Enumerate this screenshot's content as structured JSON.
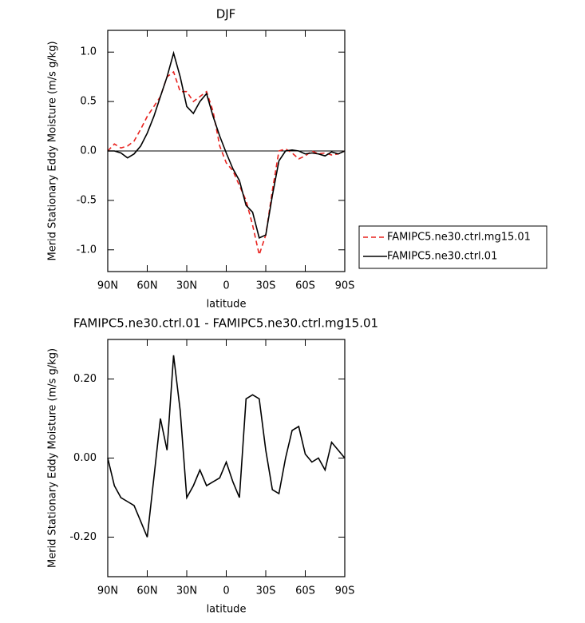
{
  "chart_data": [
    {
      "type": "line",
      "title": "DJF",
      "xlabel": "latitude",
      "ylabel": "Merid Stationary Eddy Moisture (m/s g/kg)",
      "x": [
        90,
        85,
        80,
        75,
        70,
        65,
        60,
        55,
        50,
        45,
        40,
        35,
        30,
        25,
        20,
        15,
        10,
        5,
        0,
        -5,
        -10,
        -15,
        -20,
        -25,
        -30,
        -35,
        -40,
        -45,
        -50,
        -55,
        -60,
        -65,
        -70,
        -75,
        -80,
        -85,
        -90
      ],
      "xlim": [
        90,
        -90
      ],
      "xticks": [
        {
          "value": 90,
          "label": "90N"
        },
        {
          "value": 60,
          "label": "60N"
        },
        {
          "value": 30,
          "label": "30N"
        },
        0,
        {
          "value": -30,
          "label": "30S"
        },
        {
          "value": -60,
          "label": "60S"
        },
        {
          "value": -90,
          "label": "90S"
        }
      ],
      "ylim": [
        -1.22,
        1.22
      ],
      "yticks": [
        {
          "value": 1,
          "label": "1.0"
        },
        {
          "value": 0.5,
          "label": "0.5"
        },
        {
          "value": 0,
          "label": "0.0"
        },
        {
          "value": -0.5,
          "label": "-0.5"
        },
        {
          "value": -1,
          "label": "-1.0"
        }
      ],
      "zero_line": true,
      "series": [
        {
          "name": "FAMIPC5.ne30.ctrl.mg15.01",
          "color": "#e8231f",
          "dashed": true,
          "values": [
            0.0,
            0.07,
            0.03,
            0.05,
            0.1,
            0.22,
            0.35,
            0.45,
            0.55,
            0.75,
            0.8,
            0.6,
            0.6,
            0.5,
            0.55,
            0.6,
            0.4,
            0.05,
            -0.12,
            -0.2,
            -0.35,
            -0.5,
            -0.75,
            -1.05,
            -0.85,
            -0.4,
            0.0,
            0.02,
            -0.02,
            -0.08,
            -0.05,
            0.0,
            -0.03,
            -0.02,
            -0.04,
            -0.03,
            0.0
          ]
        },
        {
          "name": "FAMIPC5.ne30.ctrl.01",
          "color": "#000000",
          "dashed": false,
          "values": [
            0.0,
            0.0,
            -0.02,
            -0.07,
            -0.03,
            0.05,
            0.18,
            0.35,
            0.55,
            0.75,
            0.99,
            0.75,
            0.45,
            0.38,
            0.5,
            0.58,
            0.35,
            0.15,
            -0.02,
            -0.18,
            -0.3,
            -0.55,
            -0.62,
            -0.88,
            -0.85,
            -0.45,
            -0.1,
            0.0,
            0.01,
            0.0,
            -0.03,
            -0.02,
            -0.03,
            -0.05,
            -0.01,
            -0.03,
            0.0
          ]
        }
      ]
    },
    {
      "type": "line",
      "title": "FAMIPC5.ne30.ctrl.01 - FAMIPC5.ne30.ctrl.mg15.01",
      "xlabel": "latitude",
      "ylabel": "Merid Stationary Eddy Moisture (m/s g/kg)",
      "x": [
        90,
        85,
        80,
        75,
        70,
        65,
        60,
        55,
        50,
        45,
        40,
        35,
        30,
        25,
        20,
        15,
        10,
        5,
        0,
        -5,
        -10,
        -15,
        -20,
        -25,
        -30,
        -35,
        -40,
        -45,
        -50,
        -55,
        -60,
        -65,
        -70,
        -75,
        -80,
        -85,
        -90
      ],
      "xlim": [
        90,
        -90
      ],
      "xticks": [
        {
          "value": 90,
          "label": "90N"
        },
        {
          "value": 60,
          "label": "60N"
        },
        {
          "value": 30,
          "label": "30N"
        },
        0,
        {
          "value": -30,
          "label": "30S"
        },
        {
          "value": -60,
          "label": "60S"
        },
        {
          "value": -90,
          "label": "90S"
        }
      ],
      "ylim": [
        -0.3,
        0.3
      ],
      "yticks": [
        {
          "value": 0.2,
          "label": "0.20"
        },
        {
          "value": 0,
          "label": "0.00"
        },
        {
          "value": -0.2,
          "label": "-0.20"
        }
      ],
      "zero_line": false,
      "series": [
        {
          "color": "#000000",
          "dashed": false,
          "values": [
            0.0,
            -0.07,
            -0.1,
            -0.11,
            -0.12,
            -0.16,
            -0.2,
            -0.05,
            0.1,
            0.02,
            0.26,
            0.12,
            -0.1,
            -0.07,
            -0.03,
            -0.07,
            -0.06,
            -0.05,
            -0.01,
            -0.06,
            -0.1,
            0.15,
            0.16,
            0.15,
            0.02,
            -0.08,
            -0.09,
            0.0,
            0.07,
            0.08,
            0.01,
            -0.01,
            0.0,
            -0.03,
            0.04,
            0.02,
            0.0
          ]
        }
      ]
    }
  ]
}
